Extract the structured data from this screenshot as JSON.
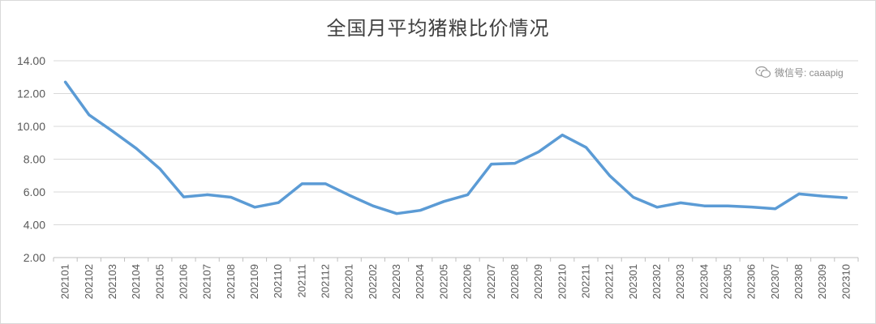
{
  "chart_data": {
    "type": "line",
    "title": "全国月平均猪粮比价情况",
    "xlabel": "",
    "ylabel": "",
    "ylim": [
      2,
      14
    ],
    "yticks": [
      "2.00",
      "4.00",
      "6.00",
      "8.00",
      "10.00",
      "12.00",
      "14.00"
    ],
    "grid": true,
    "legend": "none",
    "line_color": "#5b9bd5",
    "categories": [
      "202101",
      "202102",
      "202103",
      "202104",
      "202105",
      "202106",
      "202107",
      "202108",
      "202109",
      "202110",
      "202111",
      "202112",
      "202201",
      "202202",
      "202203",
      "202204",
      "202205",
      "202206",
      "202207",
      "202208",
      "202209",
      "202210",
      "202211",
      "202212",
      "202301",
      "202302",
      "202303",
      "202304",
      "202305",
      "202306",
      "202307",
      "202308",
      "202309",
      "202310"
    ],
    "series": [
      {
        "values": [
          12.7,
          10.7,
          9.7,
          8.65,
          7.4,
          5.7,
          5.83,
          5.68,
          5.07,
          5.35,
          6.5,
          6.5,
          5.8,
          5.15,
          4.68,
          4.88,
          5.42,
          5.83,
          7.7,
          7.75,
          8.45,
          9.47,
          8.72,
          7.0,
          5.68,
          5.07,
          5.34,
          5.15,
          5.15,
          5.08,
          4.98,
          5.88,
          5.75,
          5.65
        ]
      }
    ]
  },
  "watermark": {
    "icon": "wechat-icon",
    "text": "微信号: caaapig"
  }
}
